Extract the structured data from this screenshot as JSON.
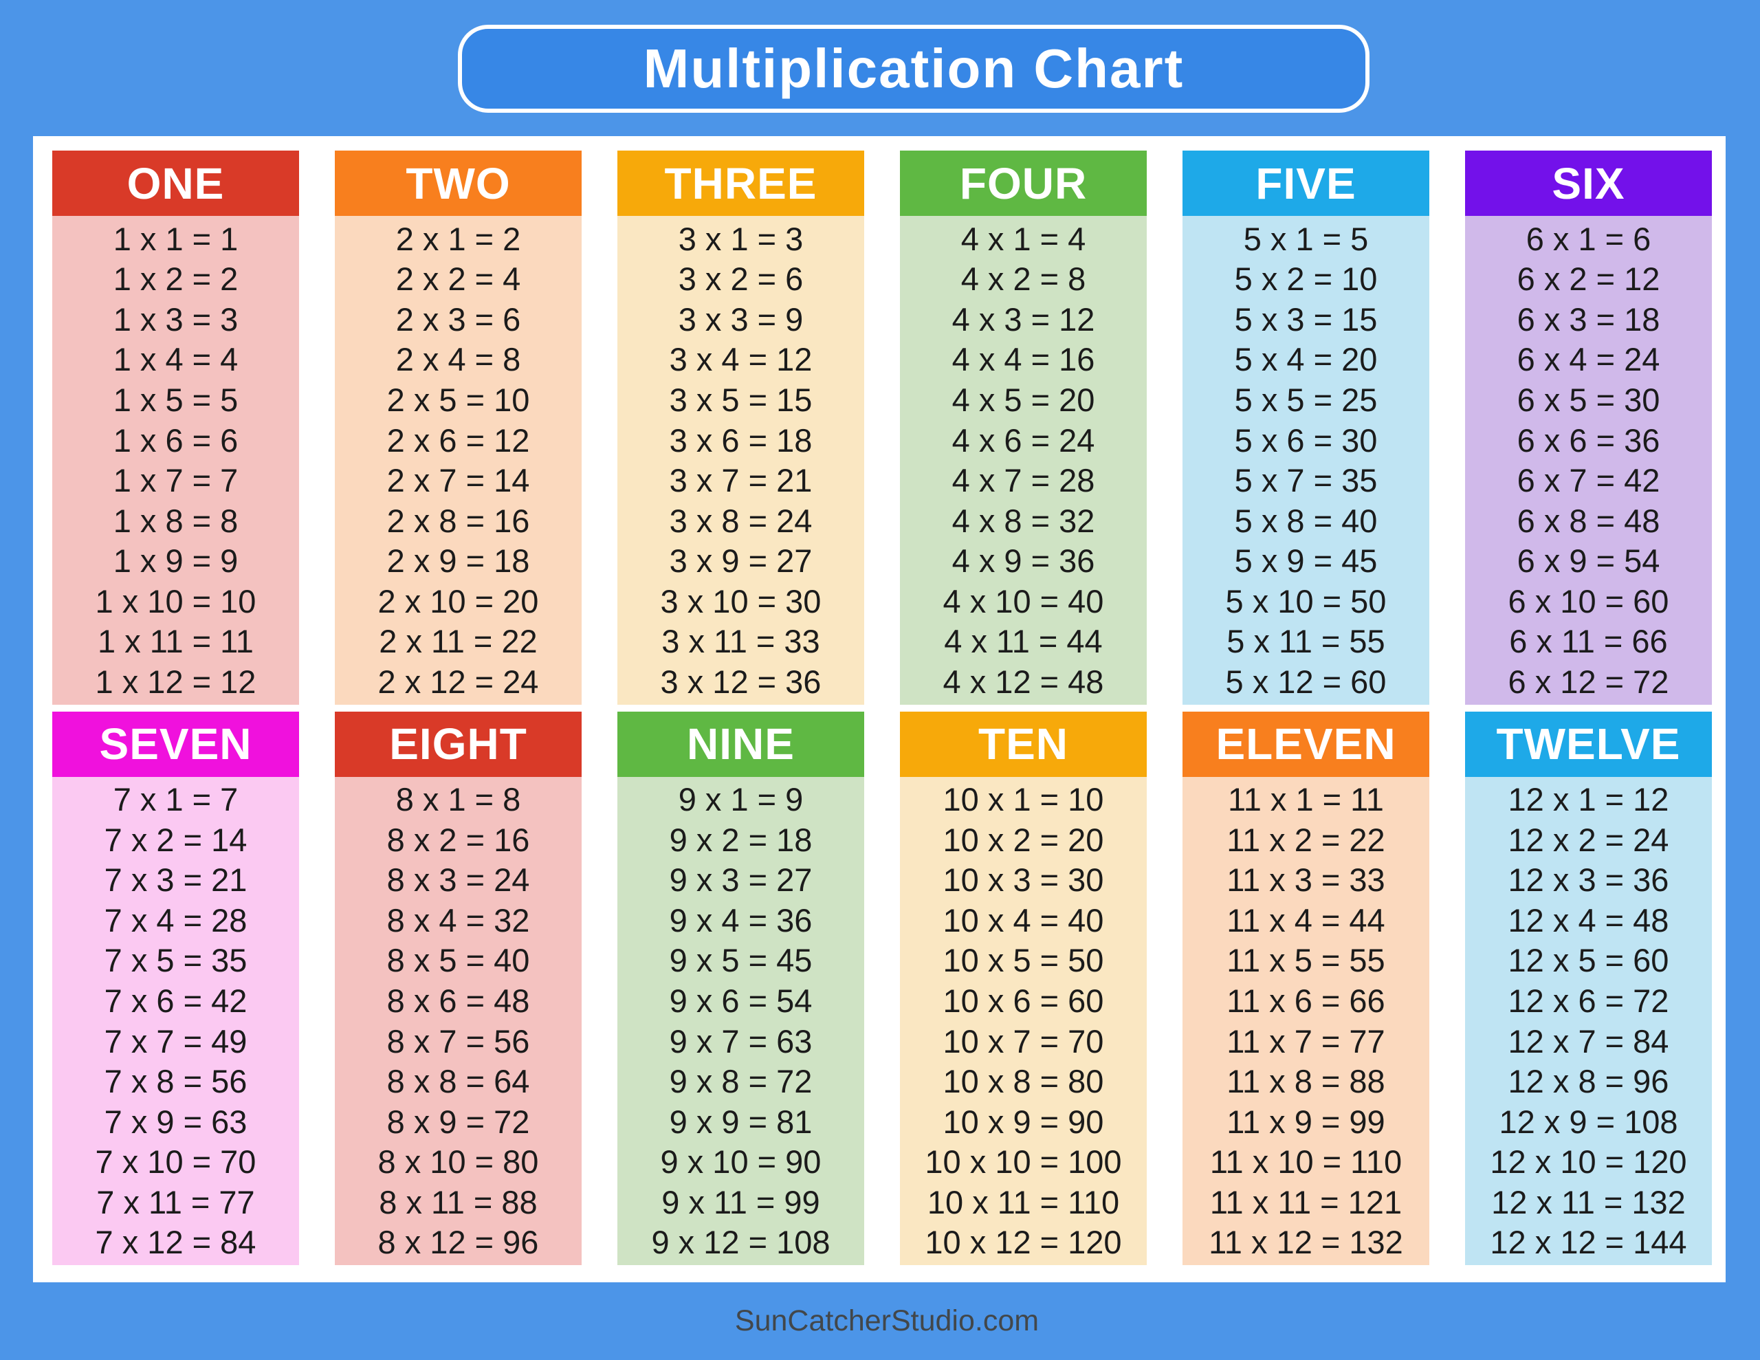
{
  "title": "Multiplication Chart",
  "footer": "SunCatcherStudio.com",
  "colors": {
    "page_bg": "#4C95E8",
    "title_box_bg": "#3787E6",
    "title_text": "#FFFFFF",
    "card_bg": "#FFFFFF",
    "fact_text": "#1B1B1B",
    "footer_text": "#42474A"
  },
  "tables": [
    {
      "name": "ONE",
      "factor": 1,
      "header_color": "#D93A28",
      "body_color": "#F4C2C0",
      "facts": [
        "1 x 1 = 1",
        "1 x 2 = 2",
        "1 x 3 = 3",
        "1 x 4 = 4",
        "1 x 5 = 5",
        "1 x 6 = 6",
        "1 x 7 = 7",
        "1 x 8 = 8",
        "1 x 9 = 9",
        "1 x 10 = 10",
        "1 x 11 = 11",
        "1 x 12 = 12"
      ]
    },
    {
      "name": "TWO",
      "factor": 2,
      "header_color": "#F87F1E",
      "body_color": "#FBD9BE",
      "facts": [
        "2 x 1 = 2",
        "2 x 2 = 4",
        "2 x 3 = 6",
        "2 x 4 = 8",
        "2 x 5 = 10",
        "2 x 6 = 12",
        "2 x 7 = 14",
        "2 x 8 = 16",
        "2 x 9 = 18",
        "2 x 10 = 20",
        "2 x 11 = 22",
        "2 x 12 = 24"
      ]
    },
    {
      "name": "THREE",
      "factor": 3,
      "header_color": "#F7A90A",
      "body_color": "#FAE7C2",
      "facts": [
        "3 x 1 = 3",
        "3 x 2 = 6",
        "3 x 3 = 9",
        "3 x 4 = 12",
        "3 x 5 = 15",
        "3 x 6 = 18",
        "3 x 7 = 21",
        "3 x 8 = 24",
        "3 x 9 = 27",
        "3 x 10 = 30",
        "3 x 11 = 33",
        "3 x 12 = 36"
      ]
    },
    {
      "name": "FOUR",
      "factor": 4,
      "header_color": "#5FB843",
      "body_color": "#CFE3C4",
      "facts": [
        "4 x 1 = 4",
        "4 x 2 = 8",
        "4 x 3 = 12",
        "4 x 4 = 16",
        "4 x 5 = 20",
        "4 x 6 = 24",
        "4 x 7 = 28",
        "4 x 8 = 32",
        "4 x 9 = 36",
        "4 x 10 = 40",
        "4 x 11 = 44",
        "4 x 12 = 48"
      ]
    },
    {
      "name": "FIVE",
      "factor": 5,
      "header_color": "#1EA9E8",
      "body_color": "#BFE4F3",
      "facts": [
        "5 x 1 = 5",
        "5 x 2 = 10",
        "5 x 3 = 15",
        "5 x 4 = 20",
        "5 x 5 = 25",
        "5 x 6 = 30",
        "5 x 7 = 35",
        "5 x 8 = 40",
        "5 x 9 = 45",
        "5 x 10 = 50",
        "5 x 11 = 55",
        "5 x 12 = 60"
      ]
    },
    {
      "name": "SIX",
      "factor": 6,
      "header_color": "#7311EA",
      "body_color": "#D0B9EA",
      "facts": [
        "6 x 1 = 6",
        "6 x 2 = 12",
        "6 x 3 = 18",
        "6 x 4 = 24",
        "6 x 5 = 30",
        "6 x 6 = 36",
        "6 x 7 = 42",
        "6 x 8 = 48",
        "6 x 9 = 54",
        "6 x 10 = 60",
        "6 x 11 = 66",
        "6 x 12 = 72"
      ]
    },
    {
      "name": "SEVEN",
      "factor": 7,
      "header_color": "#F011DD",
      "body_color": "#FBC9F2",
      "facts": [
        "7 x 1 = 7",
        "7 x 2 = 14",
        "7 x 3 = 21",
        "7 x 4 = 28",
        "7 x 5 = 35",
        "7 x 6 = 42",
        "7 x 7 = 49",
        "7 x 8 = 56",
        "7 x 9 = 63",
        "7 x 10 = 70",
        "7 x 11 = 77",
        "7 x 12 = 84"
      ]
    },
    {
      "name": "EIGHT",
      "factor": 8,
      "header_color": "#D93A28",
      "body_color": "#F4C2C0",
      "facts": [
        "8 x 1 = 8",
        "8 x 2 = 16",
        "8 x 3 = 24",
        "8 x 4 = 32",
        "8 x 5 = 40",
        "8 x 6 = 48",
        "8 x 7 = 56",
        "8 x 8 = 64",
        "8 x 9 = 72",
        "8 x 10 = 80",
        "8 x 11 = 88",
        "8 x 12 = 96"
      ]
    },
    {
      "name": "NINE",
      "factor": 9,
      "header_color": "#5FB843",
      "body_color": "#CFE3C4",
      "facts": [
        "9 x 1 = 9",
        "9 x 2 = 18",
        "9 x 3 = 27",
        "9 x 4 = 36",
        "9 x 5 = 45",
        "9 x 6 = 54",
        "9 x 7 = 63",
        "9 x 8 = 72",
        "9 x 9 = 81",
        "9 x 10 = 90",
        "9 x 11 = 99",
        "9 x 12 = 108"
      ]
    },
    {
      "name": "TEN",
      "factor": 10,
      "header_color": "#F7A90A",
      "body_color": "#FAE7C2",
      "facts": [
        "10 x 1 = 10",
        "10 x 2 = 20",
        "10 x 3 = 30",
        "10 x 4 = 40",
        "10 x 5 = 50",
        "10 x 6 = 60",
        "10 x 7 = 70",
        "10 x 8 = 80",
        "10 x 9 = 90",
        "10 x 10 = 100",
        "10 x 11 = 110",
        "10 x 12 = 120"
      ]
    },
    {
      "name": "ELEVEN",
      "factor": 11,
      "header_color": "#F87F1E",
      "body_color": "#FBD9BE",
      "facts": [
        "11 x 1 = 11",
        "11 x 2 = 22",
        "11 x 3 = 33",
        "11 x 4 = 44",
        "11 x 5 = 55",
        "11 x 6 = 66",
        "11 x 7 = 77",
        "11 x 8 = 88",
        "11 x 9 = 99",
        "11 x 10 = 110",
        "11 x 11 = 121",
        "11 x 12 = 132"
      ]
    },
    {
      "name": "TWELVE",
      "factor": 12,
      "header_color": "#1EA9E8",
      "body_color": "#BFE4F3",
      "facts": [
        "12 x 1 = 12",
        "12 x 2 = 24",
        "12 x 3 = 36",
        "12 x 4 = 48",
        "12 x 5 = 60",
        "12 x 6 = 72",
        "12 x 7 = 84",
        "12 x 8 = 96",
        "12 x 9 = 108",
        "12 x 10 = 120",
        "12 x 11 = 132",
        "12 x 12 = 144"
      ]
    }
  ]
}
